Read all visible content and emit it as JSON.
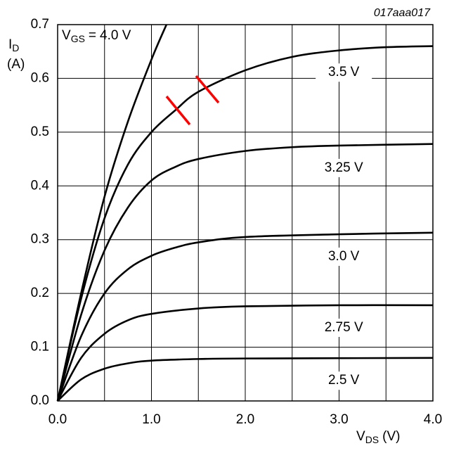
{
  "chart_data": {
    "type": "line",
    "id_label": "017aaa017",
    "x_label": {
      "symbol": "V",
      "subscript": "DS",
      "unit": "(V)"
    },
    "y_label": {
      "symbol": "I",
      "subscript": "D",
      "unit": "(A)"
    },
    "series_label_prefix": {
      "symbol": "V",
      "subscript": "GS",
      "operator": "="
    },
    "xlim": [
      0,
      4
    ],
    "ylim": [
      0,
      0.7
    ],
    "xticks": [
      {
        "value": 0,
        "label": "0.0"
      },
      {
        "value": 0.5,
        "label": null
      },
      {
        "value": 1,
        "label": "1.0"
      },
      {
        "value": 1.5,
        "label": null
      },
      {
        "value": 2,
        "label": "2.0"
      },
      {
        "value": 2.5,
        "label": null
      },
      {
        "value": 3,
        "label": "3.0"
      },
      {
        "value": 3.5,
        "label": null
      },
      {
        "value": 4,
        "label": "4.0"
      }
    ],
    "yticks": [
      {
        "value": 0,
        "label": "0.0"
      },
      0.1,
      0.2,
      0.3,
      0.4,
      0.5,
      0.6,
      0.7
    ],
    "grid": true,
    "series": [
      {
        "name": "4.0 V",
        "color": "#000000",
        "x": [
          0,
          0.25,
          0.5,
          0.75,
          1.0,
          1.16
        ],
        "values": [
          0,
          0.2,
          0.38,
          0.52,
          0.635,
          0.7
        ]
      },
      {
        "name": "3.5 V",
        "color": "#000000",
        "x": [
          0,
          0.25,
          0.5,
          0.75,
          1.0,
          1.25,
          1.5,
          2.0,
          2.5,
          3.0,
          3.5,
          4.0
        ],
        "values": [
          0,
          0.19,
          0.34,
          0.44,
          0.5,
          0.54,
          0.575,
          0.615,
          0.64,
          0.652,
          0.658,
          0.66
        ]
      },
      {
        "name": "3.25 V",
        "color": "#000000",
        "x": [
          0,
          0.25,
          0.5,
          0.75,
          1.0,
          1.25,
          1.5,
          2.0,
          2.5,
          3.0,
          4.0
        ],
        "values": [
          0,
          0.16,
          0.28,
          0.36,
          0.41,
          0.435,
          0.45,
          0.465,
          0.472,
          0.475,
          0.478
        ]
      },
      {
        "name": "3.0 V",
        "color": "#000000",
        "x": [
          0,
          0.25,
          0.5,
          0.75,
          1.0,
          1.25,
          1.5,
          2.0,
          3.0,
          4.0
        ],
        "values": [
          0,
          0.12,
          0.2,
          0.245,
          0.27,
          0.285,
          0.295,
          0.305,
          0.31,
          0.313
        ]
      },
      {
        "name": "2.75 V",
        "color": "#000000",
        "x": [
          0,
          0.25,
          0.5,
          0.75,
          1.0,
          1.5,
          2.0,
          3.0,
          4.0
        ],
        "values": [
          0,
          0.08,
          0.125,
          0.15,
          0.162,
          0.172,
          0.176,
          0.178,
          0.178
        ]
      },
      {
        "name": "2.5 V",
        "color": "#000000",
        "x": [
          0,
          0.25,
          0.5,
          0.75,
          1.0,
          1.5,
          2.0,
          4.0
        ],
        "values": [
          0,
          0.04,
          0.06,
          0.07,
          0.075,
          0.078,
          0.079,
          0.08
        ]
      }
    ]
  }
}
